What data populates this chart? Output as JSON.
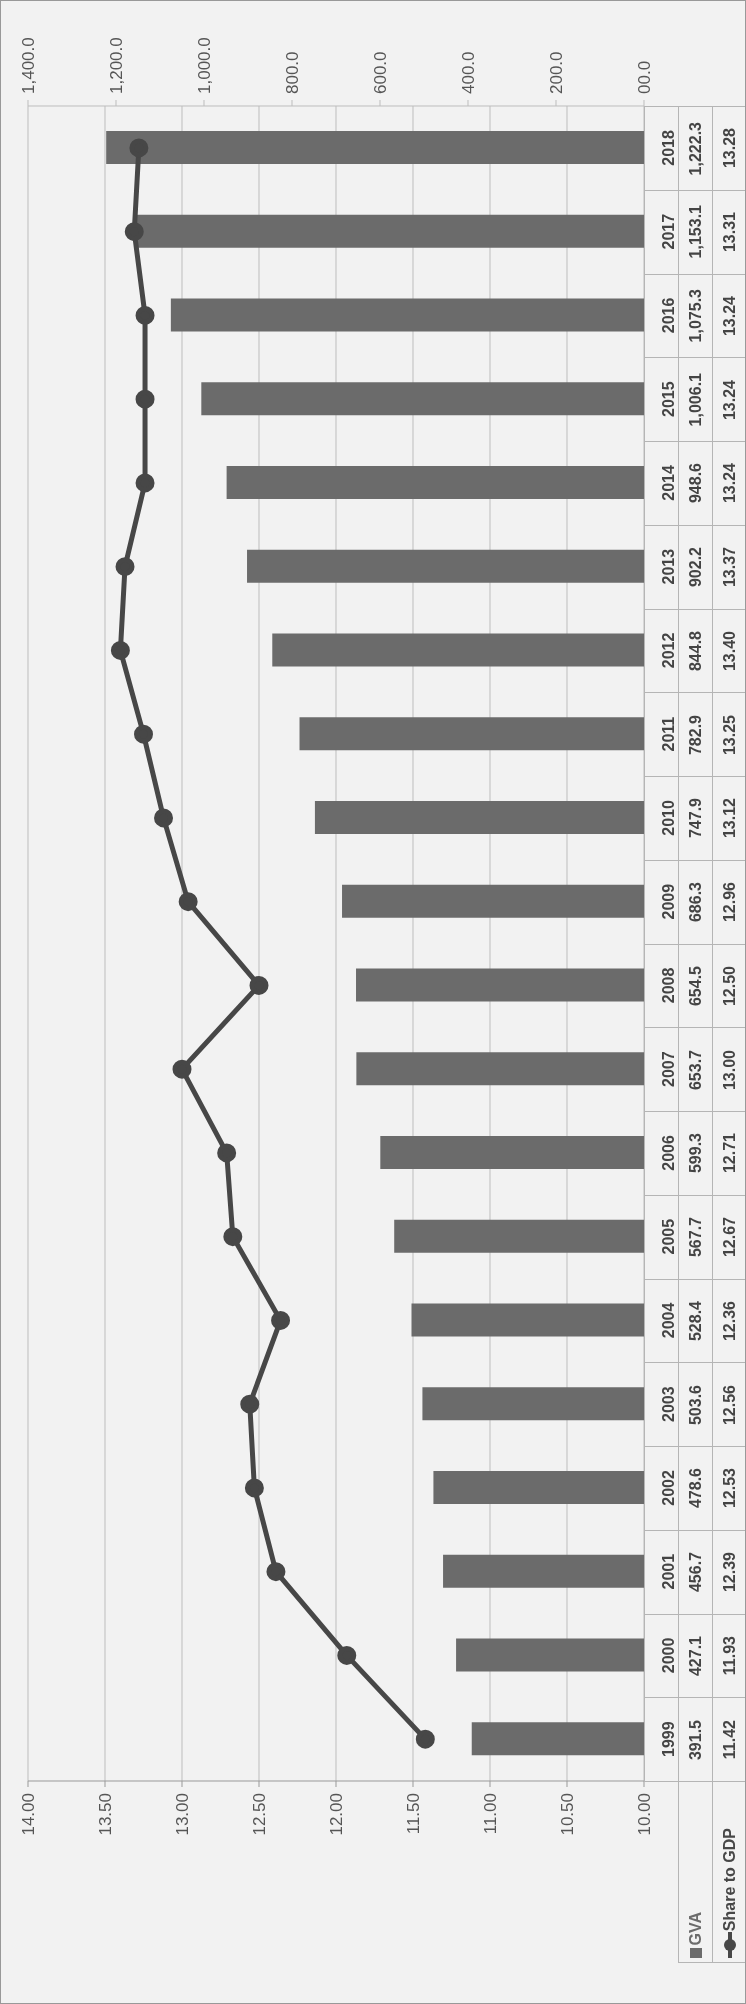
{
  "chart_data": {
    "type": "bar",
    "orientation": "horizontal",
    "categories": [
      "2018",
      "2017",
      "2016",
      "2015",
      "2014",
      "2013",
      "2012",
      "2011",
      "2010",
      "2009",
      "2008",
      "2007",
      "2006",
      "2005",
      "2004",
      "2003",
      "2002",
      "2001",
      "2000",
      "1999"
    ],
    "series": [
      {
        "name": "GVA",
        "axis": "x2",
        "color": "#6b6b6b",
        "values": [
          1222.3,
          1153.1,
          1075.3,
          1006.1,
          948.6,
          902.2,
          844.8,
          782.9,
          747.9,
          686.3,
          654.5,
          653.7,
          599.3,
          567.7,
          528.4,
          503.6,
          478.6,
          456.7,
          427.1,
          391.5
        ],
        "value_labels": [
          "1,222.3",
          "1,153.1",
          "1,075.3",
          "1,006.1",
          "948.6",
          "902.2",
          "844.8",
          "782.9",
          "747.9",
          "686.3",
          "654.5",
          "653.7",
          "599.3",
          "567.7",
          "528.4",
          "503.6",
          "478.6",
          "456.7",
          "427.1",
          "391.5"
        ]
      },
      {
        "name": "Share to GDP",
        "type": "line",
        "color": "#474747",
        "marker": "circle",
        "values": [
          13.28,
          13.31,
          13.24,
          13.24,
          13.24,
          13.37,
          13.4,
          13.25,
          13.12,
          12.96,
          12.5,
          13.0,
          12.71,
          12.67,
          12.36,
          12.56,
          12.53,
          12.39,
          11.93,
          11.42
        ],
        "value_labels": [
          "13.28",
          "13.31",
          "13.24",
          "13.24",
          "13.24",
          "13.37",
          "13.40",
          "13.25",
          "13.12",
          "12.96",
          "12.50",
          "13.00",
          "12.71",
          "12.67",
          "12.36",
          "12.56",
          "12.53",
          "12.39",
          "11.93",
          "11.42"
        ]
      }
    ],
    "xlim": [
      14,
      10
    ],
    "xticks": [
      {
        "value": 14,
        "label": "14.00"
      },
      {
        "value": 13.5,
        "label": "13.50"
      },
      {
        "value": 13,
        "label": "13.00"
      },
      {
        "value": 12.5,
        "label": "12.50"
      },
      {
        "value": 12,
        "label": "12.00"
      },
      {
        "value": 11.5,
        "label": "11.50"
      },
      {
        "value": 11,
        "label": "11.00"
      },
      {
        "value": 10.5,
        "label": "10.50"
      },
      {
        "value": 10,
        "label": "10.00"
      }
    ],
    "x2lim": [
      1400,
      0
    ],
    "x2ticks": [
      {
        "value": 1400,
        "label": "1,400.0"
      },
      {
        "value": 1200,
        "label": "1,200.0"
      },
      {
        "value": 1000,
        "label": "1,000.0"
      },
      {
        "value": 800,
        "label": "800.0"
      },
      {
        "value": 600,
        "label": "600.0"
      },
      {
        "value": 400,
        "label": "400.0"
      },
      {
        "value": 200,
        "label": "200.0"
      },
      {
        "value": 0,
        "label": "00.0"
      }
    ],
    "grid": "x",
    "legend": "bottom right",
    "line_style": "solid"
  }
}
